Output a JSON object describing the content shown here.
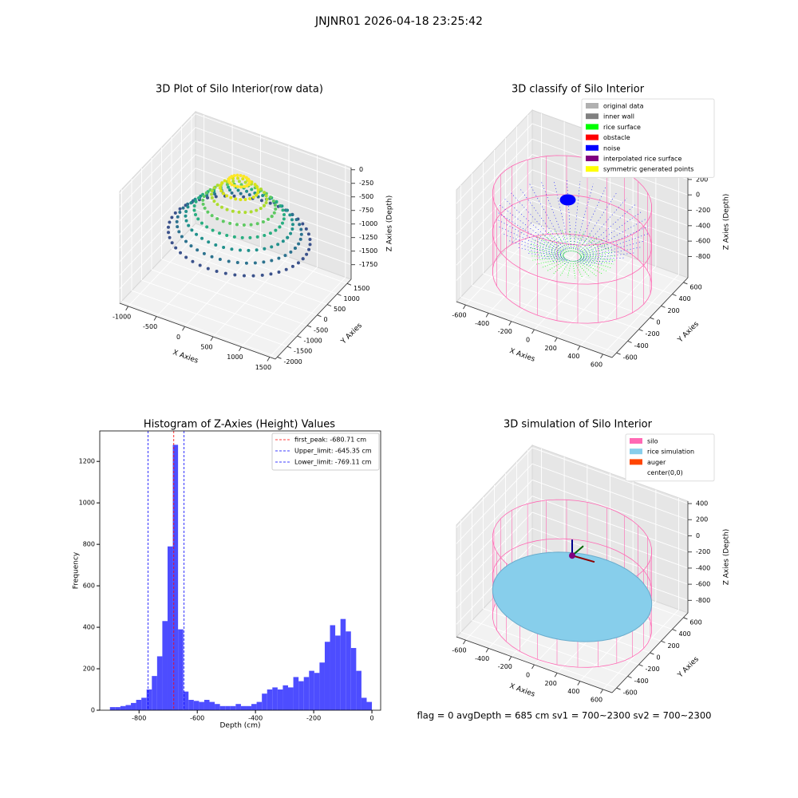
{
  "title": "JNJNR01 2026-04-18 23:25:42",
  "footer": "flag = 0     avgDepth = 685 cm  sv1 = 700~2300  sv2 = 700~2300",
  "chart_data": [
    {
      "type": "scatter3d",
      "title": "3D Plot of Silo Interior(row data)",
      "xlabel": "X Axies",
      "ylabel": "Y Axies",
      "zlabel": "Z Axies (Depth)",
      "xlim": [
        -1150,
        1600
      ],
      "xticks": [
        -1000,
        -500,
        0,
        500,
        1000,
        1500
      ],
      "ylim": [
        -2100,
        1700
      ],
      "yticks": [
        1500,
        1000,
        500,
        0,
        -500,
        -1000,
        -1500,
        -2000
      ],
      "zlim": [
        -2020,
        40
      ],
      "zticks": [
        0,
        -250,
        -500,
        -750,
        -1000,
        -1250,
        -1500,
        -1750
      ]
    },
    {
      "type": "classified3d",
      "title": "3D classify of Silo Interior",
      "xlabel": "X Axies",
      "ylabel": "Y Axies",
      "zlabel": "Z Axies (Depth)",
      "xlim": [
        -680,
        680
      ],
      "xticks": [
        -600,
        -400,
        -200,
        0,
        200,
        400,
        600
      ],
      "ylim": [
        -680,
        680
      ],
      "yticks": [
        600,
        400,
        200,
        0,
        -200,
        -400,
        -600
      ],
      "zlim": [
        -1075,
        375
      ],
      "zticks": [
        200,
        0,
        -200,
        -400,
        -600,
        -800
      ],
      "legend": "upper right",
      "series": [
        {
          "name": "original data",
          "color": "#b0b0b0"
        },
        {
          "name": "inner wall",
          "color": "#808080"
        },
        {
          "name": "rice surface",
          "color": "#00ff00"
        },
        {
          "name": "obstacle",
          "color": "#ff0000"
        },
        {
          "name": "noise",
          "color": "#0000ff"
        },
        {
          "name": "interpolated rice surface",
          "color": "#800080"
        },
        {
          "name": "symmetric generated points",
          "color": "#ffff00"
        }
      ]
    },
    {
      "type": "histogram",
      "title": "Histogram of Z-Axies (Height) Values",
      "xlabel": "Depth (cm)",
      "ylabel": "Frequency",
      "color": "#4d4dff",
      "xlim": [
        -935,
        30
      ],
      "xticks": [
        -800,
        -600,
        -400,
        -200,
        0
      ],
      "ylim": [
        0,
        1347
      ],
      "yticks": [
        0,
        200,
        400,
        600,
        800,
        1000,
        1200
      ],
      "bins": [
        -900,
        -882,
        -864,
        -846,
        -828,
        -810,
        -792,
        -774,
        -756,
        -738,
        -720,
        -702,
        -684,
        -666,
        -648,
        -630,
        -612,
        -594,
        -576,
        -558,
        -540,
        -522,
        -504,
        -486,
        -468,
        -450,
        -432,
        -414,
        -396,
        -378,
        -360,
        -342,
        -324,
        -306,
        -288,
        -270,
        -252,
        -234,
        -216,
        -198,
        -180,
        -162,
        -144,
        -126,
        -108,
        -90,
        -72,
        -54,
        -36,
        -18,
        0
      ],
      "values": [
        15,
        15,
        20,
        25,
        35,
        50,
        60,
        100,
        165,
        260,
        430,
        790,
        1280,
        390,
        90,
        50,
        45,
        40,
        50,
        40,
        30,
        20,
        20,
        20,
        30,
        20,
        20,
        30,
        40,
        80,
        100,
        110,
        100,
        120,
        110,
        160,
        140,
        160,
        190,
        180,
        230,
        330,
        410,
        360,
        440,
        380,
        300,
        190,
        60,
        40
      ],
      "legend": "upper right",
      "lines": [
        {
          "name": "first_peak: -680.71 cm",
          "value": -680.71,
          "color": "#ff0000"
        },
        {
          "name": "Upper_limit: -645.35 cm",
          "value": -645.35,
          "color": "#0000ff"
        },
        {
          "name": "Lower_limit: -769.11 cm",
          "value": -769.11,
          "color": "#0000ff"
        }
      ]
    },
    {
      "type": "wireframe3d",
      "title": "3D simulation of Silo Interior",
      "xlabel": "X Axies",
      "ylabel": "Y Axies",
      "zlabel": "Z Axies (Depth)",
      "xlim": [
        -680,
        680
      ],
      "xticks": [
        -600,
        -400,
        -200,
        0,
        200,
        400,
        600
      ],
      "ylim": [
        -680,
        680
      ],
      "yticks": [
        600,
        400,
        200,
        0,
        -200,
        -400,
        -600
      ],
      "zlim": [
        -955,
        430
      ],
      "zticks": [
        400,
        200,
        0,
        -200,
        -400,
        -600,
        -800
      ],
      "legend": "upper right",
      "series": [
        {
          "name": "silo",
          "color": "#ff69b4"
        },
        {
          "name": "rice simulation",
          "color": "#87ceeb"
        },
        {
          "name": "auger",
          "color": "#ff4500"
        },
        {
          "name": "center(0,0)",
          "color": "#ffffff"
        }
      ]
    }
  ]
}
